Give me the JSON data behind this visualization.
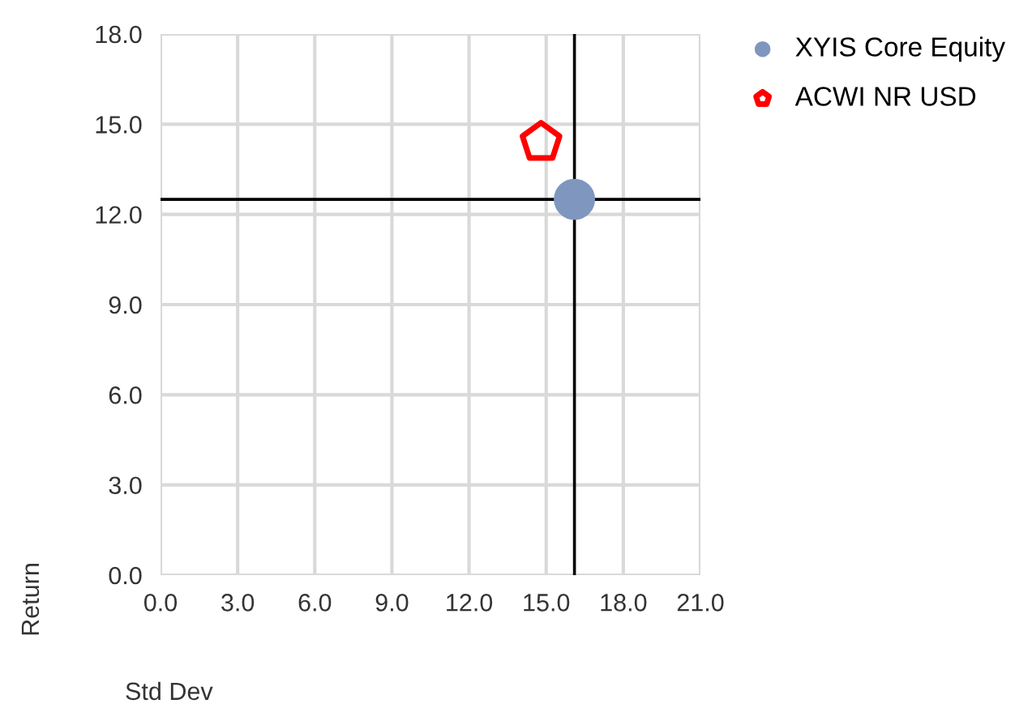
{
  "chart_data": {
    "type": "scatter",
    "xlabel": "Std Dev",
    "ylabel": "Return",
    "series": [
      {
        "name": "XYIS Core Equity",
        "color": "#7f97bf",
        "x": [
          16.1
        ],
        "values": [
          12.5
        ],
        "marker": "circle"
      },
      {
        "name": "ACWI NR USD",
        "color": "#ff0000",
        "x": [
          14.8
        ],
        "values": [
          14.4
        ]
      }
    ],
    "ref_lines": [
      {
        "axis": "x",
        "value": 16.1,
        "color": "#000000"
      },
      {
        "axis": "y",
        "value": 12.5,
        "color": "#000000"
      }
    ],
    "xlim": [
      0,
      21
    ],
    "xticks": [
      {
        "value": 0,
        "label": "0.0"
      },
      {
        "value": 3,
        "label": "3.0"
      },
      {
        "value": 6,
        "label": "6.0"
      },
      {
        "value": 9,
        "label": "9.0"
      },
      {
        "value": 12,
        "label": "12.0"
      },
      {
        "value": 15,
        "label": "15.0"
      },
      {
        "value": 18,
        "label": "18.0"
      },
      {
        "value": 21,
        "label": "21.0"
      }
    ],
    "ylim": [
      0,
      18
    ],
    "yticks": [
      {
        "value": 0,
        "label": "0.0"
      },
      {
        "value": 3,
        "label": "3.0"
      },
      {
        "value": 6,
        "label": "6.0"
      },
      {
        "value": 9,
        "label": "9.0"
      },
      {
        "value": 12,
        "label": "12.0"
      },
      {
        "value": 15,
        "label": "15.0"
      },
      {
        "value": 18,
        "label": "18.0"
      }
    ],
    "grid": true,
    "legend": "top right"
  }
}
